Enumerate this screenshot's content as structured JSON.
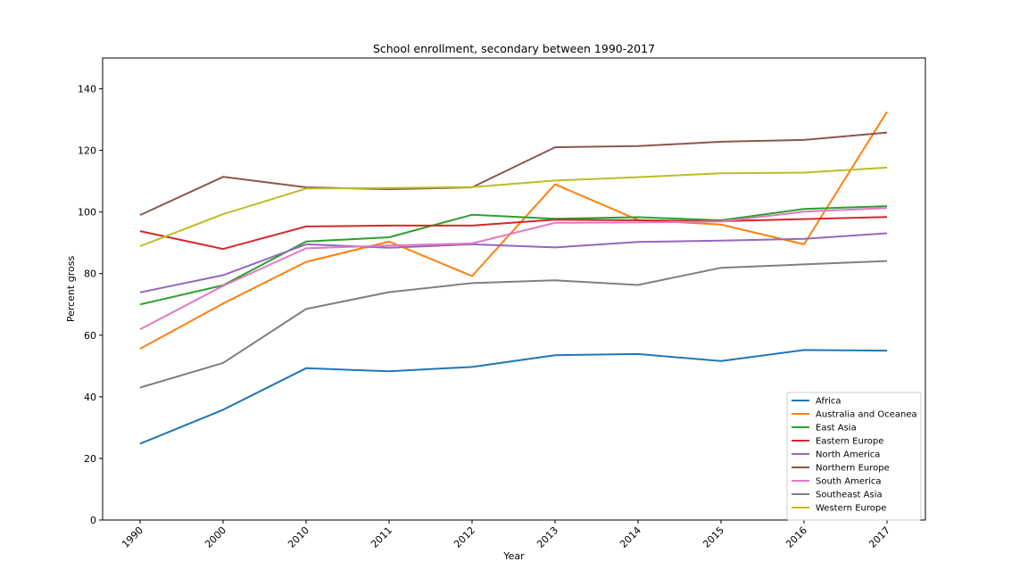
{
  "chart_data": {
    "type": "line",
    "title": "School enrollment, secondary between 1990-2017",
    "xlabel": "Year",
    "ylabel": "Percent gross",
    "categories": [
      "1990",
      "2000",
      "2010",
      "2011",
      "2012",
      "2013",
      "2014",
      "2015",
      "2016",
      "2017"
    ],
    "ylim": [
      0,
      150
    ],
    "yticks": [
      0,
      20,
      40,
      60,
      80,
      100,
      120,
      140
    ],
    "grid": false,
    "legend_position": "lower-right",
    "series": [
      {
        "name": "Africa",
        "color": "#1f77b4",
        "values": [
          24.8,
          35.8,
          49.3,
          48.3,
          49.7,
          53.5,
          53.9,
          51.6,
          55.2,
          55.0
        ]
      },
      {
        "name": "Australia and Oceanea",
        "color": "#ff7f0e",
        "values": [
          55.6,
          70.3,
          83.8,
          90.4,
          79.2,
          109.0,
          97.4,
          95.9,
          89.5,
          132.5
        ]
      },
      {
        "name": "East Asia",
        "color": "#2ca02c",
        "values": [
          70.0,
          76.2,
          90.4,
          91.8,
          99.1,
          97.8,
          98.3,
          97.3,
          101.0,
          101.9
        ]
      },
      {
        "name": "Eastern Europe",
        "color": "#d62728",
        "values": [
          93.8,
          88.0,
          95.3,
          95.6,
          95.6,
          97.5,
          97.3,
          97.0,
          97.7,
          98.4
        ]
      },
      {
        "name": "North America",
        "color": "#9467bd",
        "values": [
          73.9,
          79.5,
          89.5,
          88.4,
          89.5,
          88.5,
          90.3,
          90.7,
          91.3,
          93.1
        ]
      },
      {
        "name": "Northern Europe",
        "color": "#8c564b",
        "values": [
          99.0,
          111.4,
          108.0,
          107.4,
          108.0,
          121.0,
          121.4,
          122.8,
          123.4,
          125.8
        ]
      },
      {
        "name": "South America",
        "color": "#e377c2",
        "values": [
          61.9,
          76.0,
          88.2,
          89.1,
          89.8,
          96.5,
          96.6,
          96.9,
          100.1,
          101.3
        ]
      },
      {
        "name": "Southeast Asia",
        "color": "#7f7f7f",
        "values": [
          43.0,
          51.0,
          68.5,
          74.0,
          76.9,
          77.8,
          76.3,
          81.9,
          83.0,
          84.1
        ]
      },
      {
        "name": "Western Europe",
        "color": "#bcbd22",
        "values": [
          88.9,
          99.3,
          107.6,
          107.8,
          108.1,
          110.2,
          111.3,
          112.6,
          112.8,
          114.4
        ]
      }
    ]
  }
}
